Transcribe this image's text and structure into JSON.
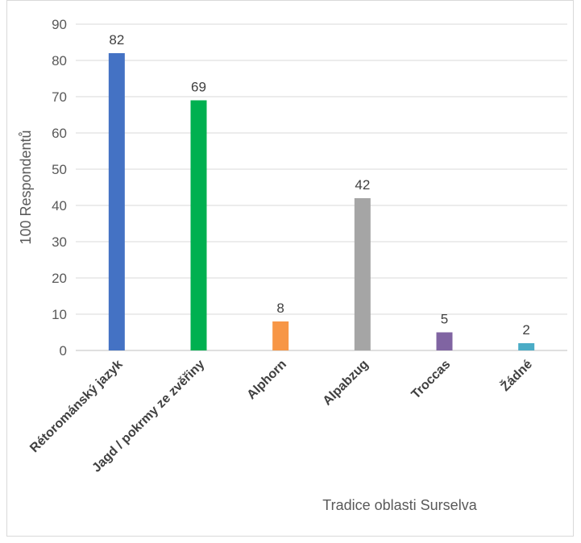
{
  "chart_data": {
    "type": "bar",
    "xlabel": "Tradice oblasti Surselva",
    "ylabel": "100 Respondentů",
    "ylim": [
      0,
      90
    ],
    "yticks": [
      "0",
      "10",
      "20",
      "30",
      "40",
      "50",
      "60",
      "70",
      "80",
      "90"
    ],
    "grid": true,
    "legend": "none",
    "categories": [
      "Rétorománský jazyk",
      "Jagd / pokrmy ze zvěřiny",
      "Alphorn",
      "Alpabzug",
      "Troccas",
      "Žádné"
    ],
    "values": [
      82,
      69,
      8,
      42,
      5,
      2
    ],
    "colors": [
      "#4472c4",
      "#00b050",
      "#f79646",
      "#a5a5a5",
      "#8064a2",
      "#4bacc6"
    ]
  }
}
